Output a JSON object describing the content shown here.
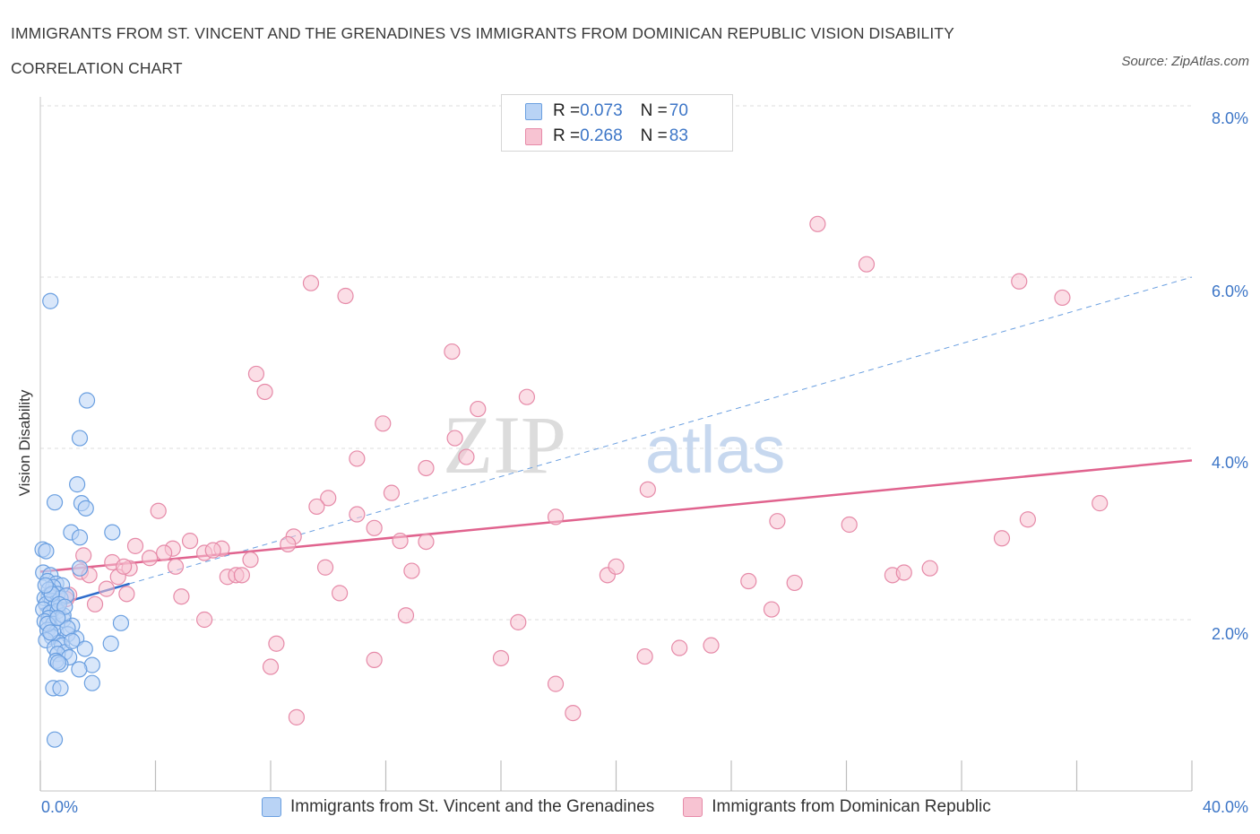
{
  "title": "IMMIGRANTS FROM ST. VINCENT AND THE GRENADINES VS IMMIGRANTS FROM DOMINICAN REPUBLIC VISION DISABILITY CORRELATION CHART",
  "source": "Source: ZipAtlas.com",
  "watermark": {
    "zip": "ZIP",
    "atlas": "atlas"
  },
  "legend": {
    "rows": [
      {
        "r_label": "R = ",
        "r_value": "0.073",
        "n_label": "N = ",
        "n_value": "70"
      },
      {
        "r_label": "R = ",
        "r_value": "0.268",
        "n_label": "N = ",
        "n_value": "83"
      }
    ]
  },
  "colors": {
    "blue_fill": "#b9d3f5",
    "blue_stroke": "#6a9fe0",
    "blue_line": "#2f6ccb",
    "pink_fill": "#f7c3d2",
    "pink_stroke": "#e68aa8",
    "pink_line": "#e0638e",
    "accent_text": "#3d76c7",
    "grid": "#dddddd"
  },
  "chart_data": {
    "type": "scatter",
    "title": "IMMIGRANTS FROM ST. VINCENT AND THE GRENADINES VS IMMIGRANTS FROM DOMINICAN REPUBLIC VISION DISABILITY CORRELATION CHART",
    "xlabel": "",
    "ylabel": "Vision Disability",
    "xlim": [
      0,
      40
    ],
    "ylim": [
      0,
      8
    ],
    "x_tick_labels": [
      "0.0%",
      "40.0%"
    ],
    "y_ticks": [
      2,
      4,
      6,
      8
    ],
    "y_tick_labels": [
      "2.0%",
      "4.0%",
      "6.0%",
      "8.0%"
    ],
    "grid": true,
    "legend_position": "top-center",
    "series": [
      {
        "name": "Immigrants from St. Vincent and the Grenadines",
        "color": "#6a9fe0",
        "trend": {
          "x": [
            0,
            3.1
          ],
          "y": [
            2.12,
            2.42
          ]
        },
        "trend_extension": {
          "x": [
            3.1,
            40
          ],
          "y": [
            2.42,
            6.0
          ]
        },
        "points": [
          [
            0.35,
            5.72
          ],
          [
            1.62,
            4.56
          ],
          [
            1.37,
            4.12
          ],
          [
            2.5,
            3.02
          ],
          [
            1.07,
            3.02
          ],
          [
            1.37,
            2.96
          ],
          [
            1.43,
            3.36
          ],
          [
            0.5,
            3.37
          ],
          [
            1.58,
            3.3
          ],
          [
            1.28,
            3.58
          ],
          [
            0.08,
            2.82
          ],
          [
            0.2,
            2.8
          ],
          [
            1.37,
            2.6
          ],
          [
            0.1,
            2.55
          ],
          [
            0.35,
            2.52
          ],
          [
            0.25,
            2.45
          ],
          [
            0.55,
            2.42
          ],
          [
            0.75,
            2.4
          ],
          [
            0.45,
            2.38
          ],
          [
            0.6,
            2.3
          ],
          [
            0.3,
            2.28
          ],
          [
            0.15,
            2.25
          ],
          [
            0.4,
            2.22
          ],
          [
            0.7,
            2.25
          ],
          [
            0.9,
            2.28
          ],
          [
            0.2,
            2.18
          ],
          [
            0.5,
            2.15
          ],
          [
            0.1,
            2.12
          ],
          [
            0.35,
            2.08
          ],
          [
            0.6,
            2.1
          ],
          [
            0.3,
            2.02
          ],
          [
            0.15,
            1.98
          ],
          [
            0.45,
            1.95
          ],
          [
            0.8,
            2.0
          ],
          [
            1.1,
            1.93
          ],
          [
            2.8,
            1.96
          ],
          [
            0.25,
            1.88
          ],
          [
            0.55,
            1.85
          ],
          [
            0.4,
            1.8
          ],
          [
            0.95,
            1.83
          ],
          [
            1.25,
            1.78
          ],
          [
            0.2,
            1.76
          ],
          [
            0.65,
            1.73
          ],
          [
            0.75,
            1.7
          ],
          [
            0.5,
            1.67
          ],
          [
            1.55,
            1.66
          ],
          [
            0.85,
            1.62
          ],
          [
            2.45,
            1.72
          ],
          [
            0.6,
            1.6
          ],
          [
            1.0,
            1.56
          ],
          [
            0.55,
            1.52
          ],
          [
            0.7,
            1.48
          ],
          [
            0.62,
            1.5
          ],
          [
            1.8,
            1.47
          ],
          [
            1.35,
            1.42
          ],
          [
            0.45,
            1.2
          ],
          [
            0.7,
            1.2
          ],
          [
            1.8,
            1.26
          ],
          [
            0.5,
            0.6
          ],
          [
            0.3,
            2.35
          ],
          [
            0.8,
            2.05
          ],
          [
            0.25,
            1.95
          ],
          [
            0.95,
            1.9
          ],
          [
            0.4,
            2.3
          ],
          [
            0.65,
            2.18
          ],
          [
            1.1,
            1.75
          ],
          [
            0.18,
            2.4
          ],
          [
            0.85,
            2.15
          ],
          [
            0.35,
            1.85
          ],
          [
            0.6,
            2.02
          ]
        ]
      },
      {
        "name": "Immigrants from Dominican Republic",
        "color": "#e68aa8",
        "trend": {
          "x": [
            0,
            40
          ],
          "y": [
            2.56,
            3.86
          ]
        },
        "points": [
          [
            27.0,
            6.62
          ],
          [
            28.7,
            6.15
          ],
          [
            9.4,
            5.93
          ],
          [
            10.6,
            5.78
          ],
          [
            34.0,
            5.95
          ],
          [
            35.5,
            5.76
          ],
          [
            14.3,
            5.13
          ],
          [
            7.5,
            4.87
          ],
          [
            7.8,
            4.66
          ],
          [
            16.9,
            4.6
          ],
          [
            15.2,
            4.46
          ],
          [
            11.9,
            4.29
          ],
          [
            14.4,
            4.12
          ],
          [
            11.0,
            3.88
          ],
          [
            14.8,
            3.9
          ],
          [
            13.4,
            3.77
          ],
          [
            21.1,
            3.52
          ],
          [
            12.2,
            3.48
          ],
          [
            10.0,
            3.42
          ],
          [
            9.6,
            3.32
          ],
          [
            4.1,
            3.27
          ],
          [
            11.0,
            3.23
          ],
          [
            17.9,
            3.2
          ],
          [
            25.6,
            3.15
          ],
          [
            28.1,
            3.11
          ],
          [
            34.3,
            3.17
          ],
          [
            36.8,
            3.36
          ],
          [
            11.6,
            3.07
          ],
          [
            8.8,
            2.97
          ],
          [
            12.5,
            2.92
          ],
          [
            13.4,
            2.91
          ],
          [
            5.2,
            2.92
          ],
          [
            33.4,
            2.95
          ],
          [
            3.3,
            2.86
          ],
          [
            4.6,
            2.83
          ],
          [
            5.7,
            2.78
          ],
          [
            6.3,
            2.83
          ],
          [
            6.0,
            2.81
          ],
          [
            8.6,
            2.88
          ],
          [
            3.8,
            2.72
          ],
          [
            2.5,
            2.67
          ],
          [
            7.3,
            2.7
          ],
          [
            4.3,
            2.78
          ],
          [
            2.7,
            2.5
          ],
          [
            3.1,
            2.6
          ],
          [
            1.4,
            2.56
          ],
          [
            6.5,
            2.5
          ],
          [
            6.8,
            2.52
          ],
          [
            7.0,
            2.52
          ],
          [
            9.9,
            2.61
          ],
          [
            12.9,
            2.57
          ],
          [
            19.7,
            2.52
          ],
          [
            20.0,
            2.62
          ],
          [
            24.6,
            2.45
          ],
          [
            26.2,
            2.43
          ],
          [
            29.6,
            2.52
          ],
          [
            30.0,
            2.55
          ],
          [
            30.9,
            2.6
          ],
          [
            1.7,
            2.52
          ],
          [
            1.0,
            2.29
          ],
          [
            4.9,
            2.27
          ],
          [
            2.3,
            2.36
          ],
          [
            0.9,
            2.24
          ],
          [
            1.9,
            2.18
          ],
          [
            10.4,
            2.31
          ],
          [
            25.4,
            2.12
          ],
          [
            12.7,
            2.05
          ],
          [
            5.7,
            2.0
          ],
          [
            16.6,
            1.97
          ],
          [
            8.2,
            1.72
          ],
          [
            21.0,
            1.57
          ],
          [
            22.2,
            1.67
          ],
          [
            23.3,
            1.7
          ],
          [
            11.6,
            1.53
          ],
          [
            16.0,
            1.55
          ],
          [
            8.0,
            1.45
          ],
          [
            17.9,
            1.25
          ],
          [
            18.5,
            0.91
          ],
          [
            8.9,
            0.86
          ],
          [
            3.0,
            2.3
          ],
          [
            2.9,
            2.62
          ],
          [
            1.5,
            2.75
          ],
          [
            4.7,
            2.62
          ]
        ]
      }
    ]
  },
  "axes": {
    "x_min_label": "0.0%",
    "x_max_label": "40.0%",
    "y_labels": [
      "2.0%",
      "4.0%",
      "6.0%",
      "8.0%"
    ],
    "y_title": "Vision Disability"
  },
  "bottom_legend": [
    {
      "label": "Immigrants from St. Vincent and the Grenadines"
    },
    {
      "label": "Immigrants from Dominican Republic"
    }
  ]
}
